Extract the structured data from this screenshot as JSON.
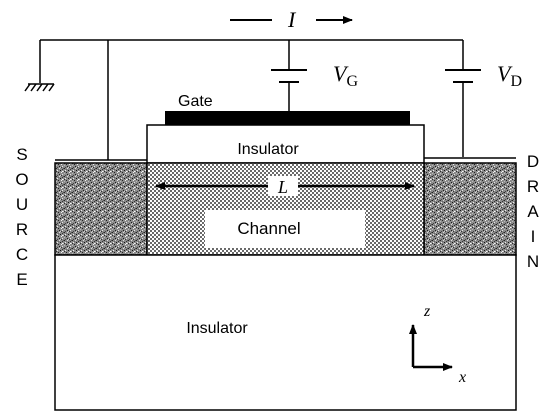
{
  "labels": {
    "current": "I",
    "gate": "Gate",
    "gate_voltage_symbol": "V",
    "gate_voltage_subscript": "G",
    "drain_voltage_symbol": "V",
    "drain_voltage_subscript": "D",
    "gate_insulator": "Insulator",
    "channel": "Channel",
    "channel_length": "L",
    "substrate_insulator": "Insulator",
    "source_letters": [
      "S",
      "O",
      "U",
      "R",
      "C",
      "E"
    ],
    "drain_letters": [
      "D",
      "R",
      "A",
      "I",
      "N"
    ],
    "axis_z": "z",
    "axis_x": "x"
  }
}
